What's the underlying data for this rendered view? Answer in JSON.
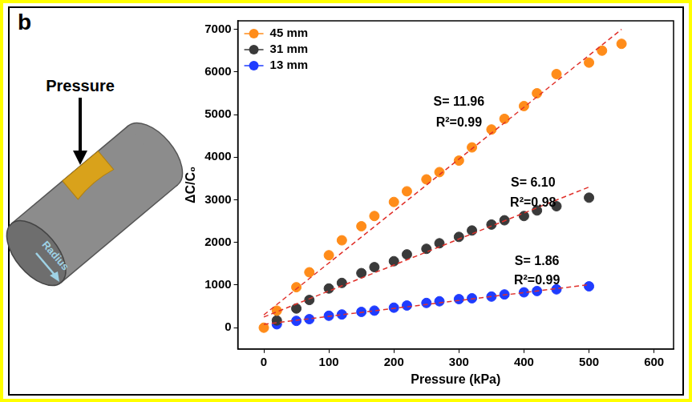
{
  "panel_label": "b",
  "illustration": {
    "force_label": "Pressure",
    "radius_label": "Radius"
  },
  "chart_data": {
    "type": "scatter",
    "x_label": "Pressure (kPa)",
    "y_label": "ΔC/C₀",
    "xlim": [
      -40,
      630
    ],
    "ylim": [
      -500,
      7200
    ],
    "xticks": [
      0,
      100,
      200,
      300,
      400,
      500,
      600
    ],
    "yticks": [
      0,
      1000,
      2000,
      3000,
      4000,
      5000,
      6000,
      7000
    ],
    "grid": false,
    "legend": "upper left",
    "series": [
      {
        "name": "45 mm",
        "color": "#ff8c1a",
        "marker": "circle",
        "x": [
          0,
          20,
          50,
          70,
          100,
          120,
          150,
          170,
          200,
          220,
          250,
          270,
          300,
          320,
          350,
          370,
          400,
          420,
          450,
          500,
          520,
          550
        ],
        "values": [
          0,
          400,
          950,
          1300,
          1700,
          2050,
          2380,
          2620,
          2950,
          3200,
          3480,
          3650,
          3920,
          4230,
          4650,
          4900,
          5200,
          5500,
          5950,
          6220,
          6500,
          6660
        ]
      },
      {
        "name": "31 mm",
        "color": "#3a3a3a",
        "marker": "circle",
        "x": [
          20,
          50,
          70,
          100,
          120,
          150,
          170,
          200,
          220,
          250,
          270,
          300,
          320,
          350,
          370,
          400,
          420,
          450,
          500
        ],
        "values": [
          170,
          450,
          650,
          920,
          1050,
          1280,
          1420,
          1560,
          1720,
          1850,
          1980,
          2130,
          2280,
          2420,
          2520,
          2620,
          2750,
          2850,
          3050
        ]
      },
      {
        "name": "13 mm",
        "color": "#1f3cff",
        "marker": "circle",
        "x": [
          20,
          50,
          70,
          100,
          120,
          150,
          170,
          200,
          220,
          250,
          270,
          300,
          320,
          350,
          370,
          400,
          420,
          450,
          500
        ],
        "values": [
          80,
          160,
          200,
          280,
          310,
          370,
          400,
          470,
          520,
          580,
          620,
          670,
          690,
          730,
          780,
          830,
          860,
          900,
          970
        ]
      }
    ],
    "fit_lines": [
      {
        "color": "#e0302a",
        "line_style": "dashed",
        "x": [
          0,
          550
        ],
        "values": [
          300,
          7000
        ]
      },
      {
        "color": "#e0302a",
        "line_style": "dashed",
        "x": [
          0,
          500
        ],
        "values": [
          250,
          3300
        ]
      },
      {
        "color": "#e0302a",
        "line_style": "dashed",
        "x": [
          0,
          500
        ],
        "values": [
          80,
          1010
        ]
      }
    ],
    "annotations": [
      {
        "text": "S= 11.96",
        "x": 300,
        "y": 5300
      },
      {
        "text": "R²=0.99",
        "x": 300,
        "y": 4800
      },
      {
        "text": "S= 6.10",
        "x": 414,
        "y": 3390
      },
      {
        "text": "R²=0.98",
        "x": 414,
        "y": 2930
      },
      {
        "text": "S= 1.86",
        "x": 420,
        "y": 1550
      },
      {
        "text": "R²=0.99",
        "x": 420,
        "y": 1100
      }
    ]
  }
}
